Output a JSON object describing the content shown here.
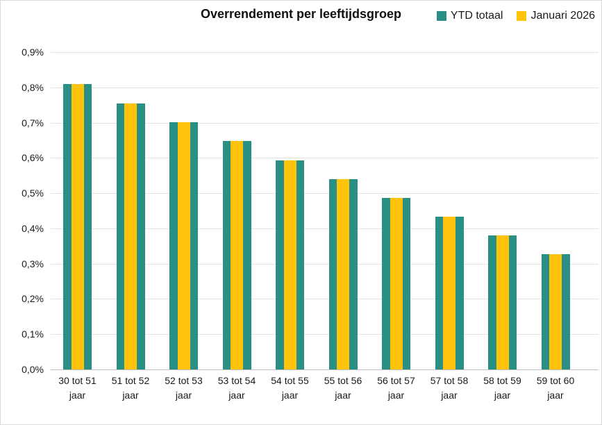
{
  "chart_data": {
    "type": "bar",
    "title": "Overrendement per leeftijdsgroep",
    "categories": [
      {
        "line1": "30 tot 51",
        "line2": "jaar"
      },
      {
        "line1": "51 tot 52",
        "line2": "jaar"
      },
      {
        "line1": "52 tot 53",
        "line2": "jaar"
      },
      {
        "line1": "53 tot 54",
        "line2": "jaar"
      },
      {
        "line1": "54 tot 55",
        "line2": "jaar"
      },
      {
        "line1": "55 tot 56",
        "line2": "jaar"
      },
      {
        "line1": "56 tot 57",
        "line2": "jaar"
      },
      {
        "line1": "57 tot 58",
        "line2": "jaar"
      },
      {
        "line1": "58 tot 59",
        "line2": "jaar"
      },
      {
        "line1": "59 tot 60",
        "line2": "jaar"
      }
    ],
    "series": [
      {
        "name": "YTD totaal",
        "color": "#2A9086",
        "values": [
          0.81,
          0.755,
          0.701,
          0.647,
          0.593,
          0.539,
          0.486,
          0.433,
          0.38,
          0.326
        ]
      },
      {
        "name": "Januari 2026",
        "color": "#FFC30B",
        "values": [
          0.81,
          0.755,
          0.701,
          0.647,
          0.593,
          0.539,
          0.486,
          0.433,
          0.38,
          0.326
        ]
      }
    ],
    "xlabel": "",
    "ylabel": "",
    "ylim": [
      0,
      0.9
    ],
    "ytick_step": 0.1,
    "yticks": [
      "0,0%",
      "0,1%",
      "0,2%",
      "0,3%",
      "0,4%",
      "0,5%",
      "0,6%",
      "0,7%",
      "0,8%",
      "0,9%"
    ],
    "value_format": "percent-comma",
    "grid": true,
    "legend_position": "top-right",
    "bar_style": "overlapped-centered"
  },
  "colors": {
    "grid": "#E3E3E3",
    "axis": "#BFBFBF",
    "text": "#1A1A1A",
    "border": "#D9D9D9",
    "background": "#FFFFFF"
  }
}
